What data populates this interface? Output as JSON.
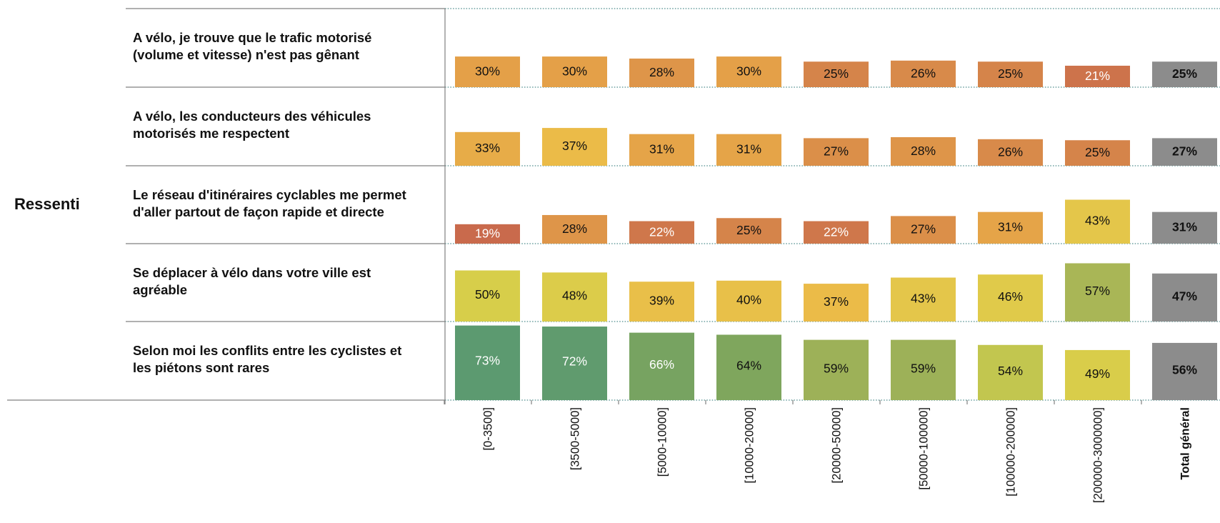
{
  "chart_data": {
    "type": "bar",
    "group_label": "Ressenti",
    "categories": [
      [
        "A vélo, je trouve que le trafic motorisé",
        "(volume et vitesse) n'est pas gênant"
      ],
      [
        "A vélo, les conducteurs des véhicules",
        "motorisés me respectent"
      ],
      [
        "Le réseau d'itinéraires cyclables me permet",
        "d'aller partout de façon rapide et directe"
      ],
      [
        "Se déplacer à vélo dans votre ville est",
        "agréable"
      ],
      [
        "Selon moi les conflits entre les cyclistes et",
        "les piétons sont rares"
      ]
    ],
    "columns": [
      "[0-3500]",
      "[3500-5000]",
      "[5000-10000]",
      "[10000-20000]",
      "[20000-50000]",
      "[50000-100000]",
      "[100000-200000]",
      "[200000-3000000]",
      "Total général"
    ],
    "values": [
      [
        30,
        30,
        28,
        30,
        25,
        26,
        25,
        21,
        25
      ],
      [
        33,
        37,
        31,
        31,
        27,
        28,
        26,
        25,
        27
      ],
      [
        19,
        28,
        22,
        25,
        22,
        27,
        31,
        43,
        31
      ],
      [
        50,
        48,
        39,
        40,
        37,
        43,
        46,
        57,
        47
      ],
      [
        73,
        72,
        66,
        64,
        59,
        59,
        54,
        49,
        56
      ]
    ],
    "value_suffix": "%",
    "total_color": "#8c8c8c",
    "color_scale": [
      {
        "v": 19,
        "color": "#c96a4c"
      },
      {
        "v": 25,
        "color": "#d5844a"
      },
      {
        "v": 30,
        "color": "#e4a048"
      },
      {
        "v": 37,
        "color": "#ebbb48"
      },
      {
        "v": 45,
        "color": "#e2c94a"
      },
      {
        "v": 52,
        "color": "#d3d04a"
      },
      {
        "v": 57,
        "color": "#a9b656"
      },
      {
        "v": 64,
        "color": "#7fa65d"
      },
      {
        "v": 73,
        "color": "#5c9a70"
      }
    ],
    "light_text_values": [
      19,
      21,
      22,
      66,
      72,
      73
    ]
  }
}
